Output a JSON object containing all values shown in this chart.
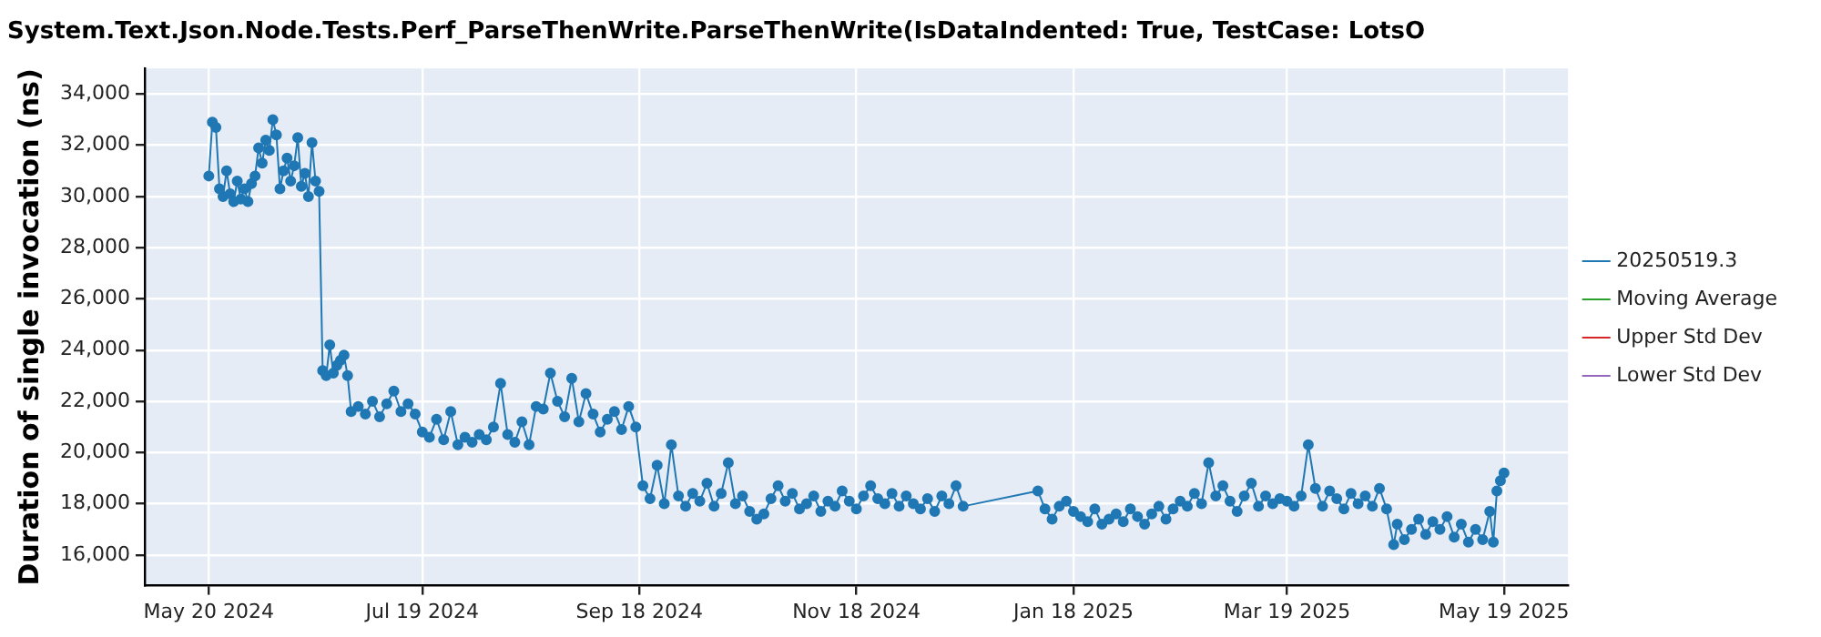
{
  "chart_data": {
    "type": "line",
    "title": "System.Text.Json.Node.Tests.Perf_ParseThenWrite.ParseThenWrite(IsDataIndented: True, TestCase: LotsO",
    "ylabel": "Duration of single invocation (ns)",
    "x": [
      "2024-05-20",
      "2024-05-21",
      "2024-05-22",
      "2024-05-23",
      "2024-05-24",
      "2024-05-25",
      "2024-05-26",
      "2024-05-27",
      "2024-05-28",
      "2024-05-29",
      "2024-05-30",
      "2024-05-31",
      "2024-06-01",
      "2024-06-02",
      "2024-06-03",
      "2024-06-04",
      "2024-06-05",
      "2024-06-06",
      "2024-06-07",
      "2024-06-08",
      "2024-06-09",
      "2024-06-10",
      "2024-06-11",
      "2024-06-12",
      "2024-06-13",
      "2024-06-14",
      "2024-06-15",
      "2024-06-16",
      "2024-06-17",
      "2024-06-18",
      "2024-06-19",
      "2024-06-20",
      "2024-06-21",
      "2024-06-22",
      "2024-06-23",
      "2024-06-24",
      "2024-06-25",
      "2024-06-26",
      "2024-06-27",
      "2024-06-28",
      "2024-06-29",
      "2024-07-01",
      "2024-07-03",
      "2024-07-05",
      "2024-07-07",
      "2024-07-09",
      "2024-07-11",
      "2024-07-13",
      "2024-07-15",
      "2024-07-17",
      "2024-07-19",
      "2024-07-21",
      "2024-07-23",
      "2024-07-25",
      "2024-07-27",
      "2024-07-29",
      "2024-07-31",
      "2024-08-02",
      "2024-08-04",
      "2024-08-06",
      "2024-08-08",
      "2024-08-10",
      "2024-08-12",
      "2024-08-14",
      "2024-08-16",
      "2024-08-18",
      "2024-08-20",
      "2024-08-22",
      "2024-08-24",
      "2024-08-26",
      "2024-08-28",
      "2024-08-30",
      "2024-09-01",
      "2024-09-03",
      "2024-09-05",
      "2024-09-07",
      "2024-09-09",
      "2024-09-11",
      "2024-09-13",
      "2024-09-15",
      "2024-09-17",
      "2024-09-19",
      "2024-09-21",
      "2024-09-23",
      "2024-09-25",
      "2024-09-27",
      "2024-09-29",
      "2024-10-01",
      "2024-10-03",
      "2024-10-05",
      "2024-10-07",
      "2024-10-09",
      "2024-10-11",
      "2024-10-13",
      "2024-10-15",
      "2024-10-17",
      "2024-10-19",
      "2024-10-21",
      "2024-10-23",
      "2024-10-25",
      "2024-10-27",
      "2024-10-29",
      "2024-10-31",
      "2024-11-02",
      "2024-11-04",
      "2024-11-06",
      "2024-11-08",
      "2024-11-10",
      "2024-11-12",
      "2024-11-14",
      "2024-11-16",
      "2024-11-18",
      "2024-11-20",
      "2024-11-22",
      "2024-11-24",
      "2024-11-26",
      "2024-11-28",
      "2024-11-30",
      "2024-12-02",
      "2024-12-04",
      "2024-12-06",
      "2024-12-08",
      "2024-12-10",
      "2024-12-12",
      "2024-12-14",
      "2024-12-16",
      "2024-12-18",
      "2025-01-08",
      "2025-01-10",
      "2025-01-12",
      "2025-01-14",
      "2025-01-16",
      "2025-01-18",
      "2025-01-20",
      "2025-01-22",
      "2025-01-24",
      "2025-01-26",
      "2025-01-28",
      "2025-01-30",
      "2025-02-01",
      "2025-02-03",
      "2025-02-05",
      "2025-02-07",
      "2025-02-09",
      "2025-02-11",
      "2025-02-13",
      "2025-02-15",
      "2025-02-17",
      "2025-02-19",
      "2025-02-21",
      "2025-02-23",
      "2025-02-25",
      "2025-02-27",
      "2025-03-01",
      "2025-03-03",
      "2025-03-05",
      "2025-03-07",
      "2025-03-09",
      "2025-03-11",
      "2025-03-13",
      "2025-03-15",
      "2025-03-17",
      "2025-03-19",
      "2025-03-21",
      "2025-03-23",
      "2025-03-25",
      "2025-03-27",
      "2025-03-29",
      "2025-03-31",
      "2025-04-02",
      "2025-04-04",
      "2025-04-06",
      "2025-04-08",
      "2025-04-10",
      "2025-04-12",
      "2025-04-14",
      "2025-04-16",
      "2025-04-18",
      "2025-04-19",
      "2025-04-21",
      "2025-04-23",
      "2025-04-25",
      "2025-04-27",
      "2025-04-29",
      "2025-05-01",
      "2025-05-03",
      "2025-05-05",
      "2025-05-07",
      "2025-05-09",
      "2025-05-11",
      "2025-05-13",
      "2025-05-15",
      "2025-05-16",
      "2025-05-17",
      "2025-05-18",
      "2025-05-19"
    ],
    "series": [
      {
        "name": "20250519.3",
        "color": "#1f77b4",
        "values": [
          30800,
          32900,
          32700,
          30300,
          30000,
          31000,
          30100,
          29800,
          30600,
          29900,
          30300,
          29800,
          30500,
          30800,
          31900,
          31300,
          32200,
          31800,
          33000,
          32400,
          30300,
          31000,
          31500,
          30600,
          31200,
          32300,
          30400,
          30900,
          30000,
          32100,
          30600,
          30200,
          23200,
          23000,
          24200,
          23100,
          23400,
          23600,
          23800,
          23000,
          21600,
          21800,
          21500,
          22000,
          21400,
          21900,
          22400,
          21600,
          21900,
          21500,
          20800,
          20600,
          21300,
          20500,
          21600,
          20300,
          20600,
          20400,
          20700,
          20500,
          21000,
          22700,
          20700,
          20400,
          21200,
          20300,
          21800,
          21700,
          23100,
          22000,
          21400,
          22900,
          21200,
          22300,
          21500,
          20800,
          21300,
          21600,
          20900,
          21800,
          21000,
          18700,
          18200,
          19500,
          18000,
          20300,
          18300,
          17900,
          18400,
          18100,
          18800,
          17900,
          18400,
          19600,
          18000,
          18300,
          17700,
          17400,
          17600,
          18200,
          18700,
          18100,
          18400,
          17800,
          18000,
          18300,
          17700,
          18100,
          17900,
          18500,
          18100,
          17800,
          18300,
          18700,
          18200,
          18000,
          18400,
          17900,
          18300,
          18000,
          17800,
          18200,
          17700,
          18300,
          18000,
          18700,
          17900,
          18500,
          17800,
          17400,
          17900,
          18100,
          17700,
          17500,
          17300,
          17800,
          17200,
          17400,
          17600,
          17300,
          17800,
          17500,
          17200,
          17600,
          17900,
          17400,
          17800,
          18100,
          17900,
          18400,
          18000,
          19600,
          18300,
          18700,
          18100,
          17700,
          18300,
          18800,
          17900,
          18300,
          18000,
          18200,
          18100,
          17900,
          18300,
          20300,
          18600,
          17900,
          18500,
          18200,
          17800,
          18400,
          18000,
          18300,
          17900,
          18600,
          17800,
          16400,
          17200,
          16600,
          17000,
          17400,
          16800,
          17300,
          17000,
          17500,
          16700,
          17200,
          16500,
          17000,
          16600,
          17700,
          16500,
          18500,
          18900,
          19200
        ]
      },
      {
        "name": "Moving Average",
        "color": "#2ca02c",
        "values": [
          null,
          null,
          null,
          null,
          null,
          null,
          null,
          null,
          null,
          null,
          null,
          null,
          null,
          null,
          null,
          null,
          null,
          null,
          null,
          null,
          null,
          null,
          null,
          null,
          null,
          null,
          null,
          null,
          null,
          null,
          null,
          null,
          null,
          null,
          null,
          null,
          null,
          null,
          null,
          null,
          null,
          null,
          null,
          null,
          null,
          null,
          null,
          null,
          null,
          null,
          null,
          null,
          null,
          null,
          null,
          null,
          null,
          null,
          null,
          null,
          null,
          null,
          null,
          null,
          null,
          null,
          null,
          null,
          null,
          null,
          null,
          null,
          null,
          null,
          null,
          null,
          null,
          null,
          null,
          null,
          null,
          null,
          null,
          null,
          null,
          null,
          null,
          null,
          null,
          null,
          null,
          null,
          null,
          null,
          null,
          null,
          null,
          null,
          null,
          null,
          null,
          null,
          null,
          null,
          null,
          null,
          null,
          null,
          null,
          null,
          null,
          null,
          null,
          null,
          null,
          null,
          null,
          null,
          null,
          null,
          null,
          null,
          null,
          null,
          null,
          null,
          null,
          null,
          null,
          null,
          null,
          null,
          null,
          null,
          null,
          null,
          null,
          null,
          null,
          null,
          null,
          null,
          null,
          null,
          null,
          null,
          null,
          null,
          null,
          null,
          null,
          null,
          null,
          null,
          null,
          null,
          null,
          null,
          null,
          null,
          null,
          null,
          null,
          null,
          null,
          null,
          null,
          null,
          null,
          null,
          null,
          null,
          null,
          null,
          null,
          null,
          null,
          null,
          null,
          null,
          null,
          null,
          null,
          null,
          null,
          null,
          null,
          null,
          null,
          null,
          null,
          null,
          null,
          null,
          null,
          null
        ]
      },
      {
        "name": "Upper Std Dev",
        "color": "#d62728",
        "values": [
          null,
          null,
          null,
          null,
          null,
          null,
          null,
          null,
          null,
          null,
          null,
          null,
          null,
          null,
          null,
          null,
          null,
          null,
          null,
          null,
          null,
          null,
          null,
          null,
          null,
          null,
          null,
          null,
          null,
          null,
          null,
          null,
          null,
          null,
          null,
          null,
          null,
          null,
          null,
          null,
          null,
          null,
          null,
          null,
          null,
          null,
          null,
          null,
          null,
          null,
          null,
          null,
          null,
          null,
          null,
          null,
          null,
          null,
          null,
          null,
          null,
          null,
          null,
          null,
          null,
          null,
          null,
          null,
          null,
          null,
          null,
          null,
          null,
          null,
          null,
          null,
          null,
          null,
          null,
          null,
          null,
          null,
          null,
          null,
          null,
          null,
          null,
          null,
          null,
          null,
          null,
          null,
          null,
          null,
          null,
          null,
          null,
          null,
          null,
          null,
          null,
          null,
          null,
          null,
          null,
          null,
          null,
          null,
          null,
          null,
          null,
          null,
          null,
          null,
          null,
          null,
          null,
          null,
          null,
          null,
          null,
          null,
          null,
          null,
          null,
          null,
          null,
          null,
          null,
          null,
          null,
          null,
          null,
          null,
          null,
          null,
          null,
          null,
          null,
          null,
          null,
          null,
          null,
          null,
          null,
          null,
          null,
          null,
          null,
          null,
          null,
          null,
          null,
          null,
          null,
          null,
          null,
          null,
          null,
          null,
          null,
          null,
          null,
          null,
          null,
          null,
          null,
          null,
          null,
          null,
          null,
          null,
          null,
          null,
          null,
          null,
          null,
          null,
          null,
          null,
          null,
          null,
          null,
          null,
          null,
          null,
          null,
          null,
          null,
          null,
          null,
          null,
          null,
          null,
          null,
          null
        ]
      },
      {
        "name": "Lower Std Dev",
        "color": "#9467bd",
        "values": [
          null,
          null,
          null,
          null,
          null,
          null,
          null,
          null,
          null,
          null,
          null,
          null,
          null,
          null,
          null,
          null,
          null,
          null,
          null,
          null,
          null,
          null,
          null,
          null,
          null,
          null,
          null,
          null,
          null,
          null,
          null,
          null,
          null,
          null,
          null,
          null,
          null,
          null,
          null,
          null,
          null,
          null,
          null,
          null,
          null,
          null,
          null,
          null,
          null,
          null,
          null,
          null,
          null,
          null,
          null,
          null,
          null,
          null,
          null,
          null,
          null,
          null,
          null,
          null,
          null,
          null,
          null,
          null,
          null,
          null,
          null,
          null,
          null,
          null,
          null,
          null,
          null,
          null,
          null,
          null,
          null,
          null,
          null,
          null,
          null,
          null,
          null,
          null,
          null,
          null,
          null,
          null,
          null,
          null,
          null,
          null,
          null,
          null,
          null,
          null,
          null,
          null,
          null,
          null,
          null,
          null,
          null,
          null,
          null,
          null,
          null,
          null,
          null,
          null,
          null,
          null,
          null,
          null,
          null,
          null,
          null,
          null,
          null,
          null,
          null,
          null,
          null,
          null,
          null,
          null,
          null,
          null,
          null,
          null,
          null,
          null,
          null,
          null,
          null,
          null,
          null,
          null,
          null,
          null,
          null,
          null,
          null,
          null,
          null,
          null,
          null,
          null,
          null,
          null,
          null,
          null,
          null,
          null,
          null,
          null,
          null,
          null,
          null,
          null,
          null,
          null,
          null,
          null,
          null,
          null,
          null,
          null,
          null,
          null,
          null,
          null,
          null,
          null,
          null,
          null,
          null,
          null,
          null,
          null,
          null,
          null,
          null,
          null,
          null,
          null,
          null,
          null,
          null,
          null,
          null,
          null
        ]
      }
    ],
    "xlim": [
      "2024-05-02",
      "2025-06-06"
    ],
    "xticks": [
      {
        "value": "2024-05-20",
        "label": "May 20 2024"
      },
      {
        "value": "2024-07-19",
        "label": "Jul 19 2024"
      },
      {
        "value": "2024-09-18",
        "label": "Sep 18 2024"
      },
      {
        "value": "2024-11-18",
        "label": "Nov 18 2024"
      },
      {
        "value": "2025-01-18",
        "label": "Jan 18 2025"
      },
      {
        "value": "2025-03-19",
        "label": "Mar 19 2025"
      },
      {
        "value": "2025-05-19",
        "label": "May 19 2025"
      }
    ],
    "ylim": [
      14800,
      35000
    ],
    "yticks": [
      {
        "value": 16000,
        "label": "16,000"
      },
      {
        "value": 18000,
        "label": "18,000"
      },
      {
        "value": 20000,
        "label": "20,000"
      },
      {
        "value": 22000,
        "label": "22,000"
      },
      {
        "value": 24000,
        "label": "24,000"
      },
      {
        "value": 26000,
        "label": "26,000"
      },
      {
        "value": 28000,
        "label": "28,000"
      },
      {
        "value": 30000,
        "label": "30,000"
      },
      {
        "value": 32000,
        "label": "32,000"
      },
      {
        "value": 34000,
        "label": "34,000"
      }
    ],
    "grid": true,
    "legend": "right",
    "marker": "circle",
    "line_style": "solid"
  }
}
